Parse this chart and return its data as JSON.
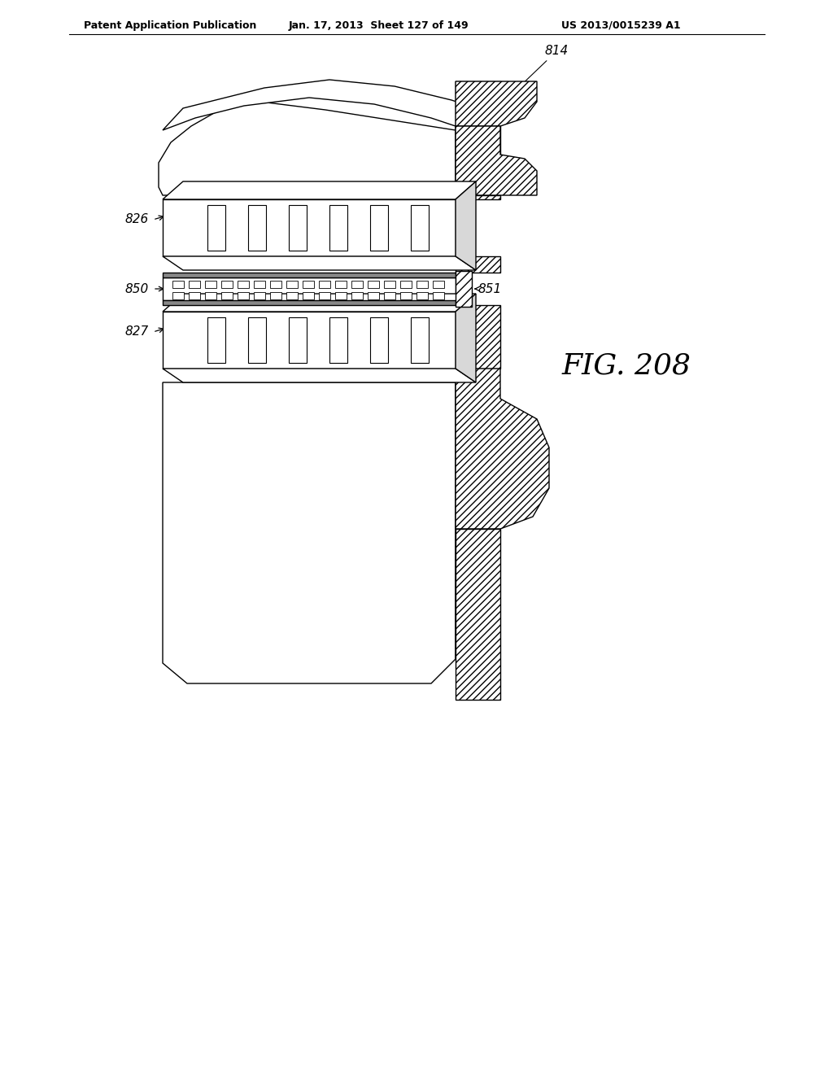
{
  "header_left": "Patent Application Publication",
  "header_mid": "Jan. 17, 2013  Sheet 127 of 149",
  "header_right": "US 2013/0015239 A1",
  "fig_label": "FIG. 208",
  "bg_color": "#ffffff"
}
